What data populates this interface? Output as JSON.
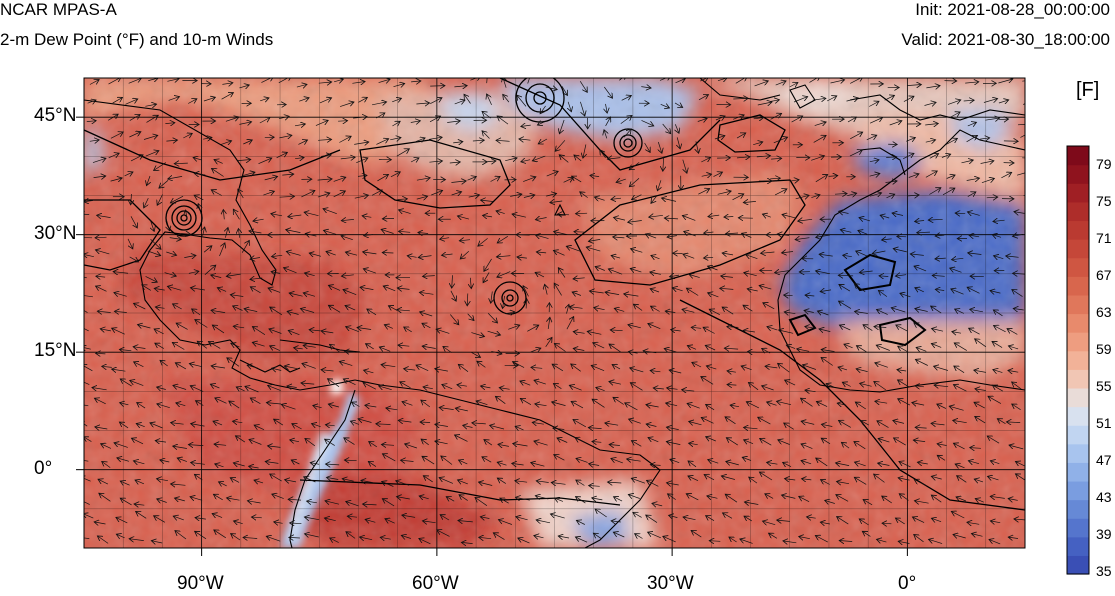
{
  "header": {
    "model": "NCAR MPAS-A",
    "field": "2-m Dew Point (°F) and 10-m Winds",
    "init": "Init: 2021-08-28_00:00:00",
    "valid": "Valid: 2021-08-30_18:00:00"
  },
  "map": {
    "lat_labels": [
      "45°N",
      "30°N",
      "15°N",
      "0°"
    ],
    "lon_labels": [
      "90°W",
      "60°W",
      "30°W",
      "0°"
    ],
    "lon_range": [
      -105,
      15
    ],
    "lat_range": [
      -10,
      50
    ],
    "colors": {
      "ocean_moist": "#d9604e",
      "very_moist": "#c43a32",
      "moderate": "#ec9c7e",
      "neutral": "#d8dde6",
      "dry": "#5a7cd4",
      "very_dry": "#3a55c0"
    }
  },
  "colorbar": {
    "unit": "[F]",
    "labels": [
      "79",
      "75",
      "71",
      "67",
      "63",
      "59",
      "55",
      "51",
      "47",
      "43",
      "39",
      "35"
    ],
    "min": 35,
    "max": 81,
    "colors": [
      "#3a4fb5",
      "#4561c2",
      "#5575cd",
      "#6689d6",
      "#7a9de0",
      "#90b1e8",
      "#a8c4ee",
      "#c1d5f1",
      "#d8e1ef",
      "#e9dcd8",
      "#f1c6b4",
      "#f2b298",
      "#ee9d80",
      "#e88a6c",
      "#e0775b",
      "#d8664d",
      "#cf5642",
      "#c54739",
      "#ba3a31",
      "#ae2d2a",
      "#a01f24",
      "#8f131e",
      "#7e0a1a"
    ]
  }
}
